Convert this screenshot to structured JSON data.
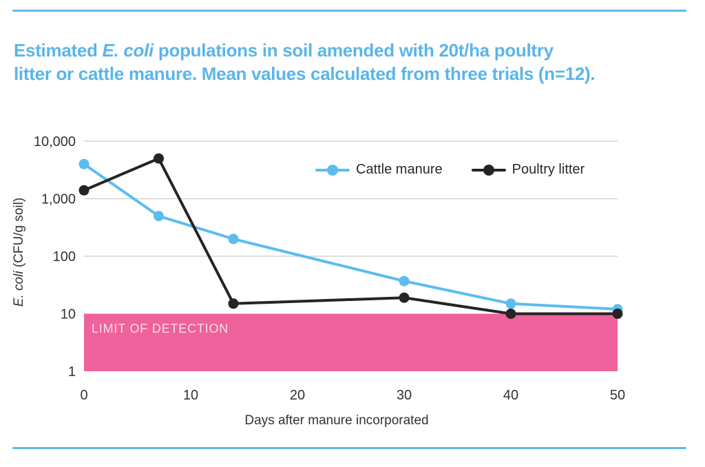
{
  "header": {
    "title_line1": {
      "prefix": "Estimated ",
      "italic": "E. coli",
      "suffix": " populations in soil amended with 20t/ha poultry"
    },
    "title_line2": "litter or cattle manure. Mean values calculated from three trials (n=12)."
  },
  "colors": {
    "accent_rule": "#5fb9e8",
    "title_text": "#5ab5e9",
    "cattle_series": "#5cbcee",
    "poultry_series": "#262324",
    "detection_band": "#ef629b",
    "band_label_text": "#f9dcea",
    "gridline": "#cbcbcb",
    "axis_text": "#363132"
  },
  "chart_data": {
    "type": "line",
    "title": "Estimated E. coli populations in soil amended with 20t/ha poultry litter or cattle manure. Mean values calculated from three trials (n=12).",
    "x_values": [
      0,
      7,
      14,
      30,
      40,
      50
    ],
    "series": [
      {
        "name": "Cattle manure",
        "color": "#5cbcee",
        "values": [
          4000,
          500,
          200,
          37,
          15,
          12
        ]
      },
      {
        "name": "Poultry litter",
        "color": "#262324",
        "values": [
          1400,
          5000,
          15,
          19,
          10,
          10
        ]
      }
    ],
    "xlabel": "Days after manure incorporated",
    "ylabel": "E. coli (CFU/g soil)",
    "ylabel_parts": {
      "italic": "E. coli",
      "rest": " (CFU/g soil)"
    },
    "yscale": "log",
    "xlim": [
      0,
      50
    ],
    "ylim": [
      1,
      10000
    ],
    "grid": "horizontal-only",
    "xticks": [
      {
        "value": 0,
        "label": "0"
      },
      {
        "value": 10,
        "label": "10"
      },
      {
        "value": 20,
        "label": "20"
      },
      {
        "value": 30,
        "label": "30"
      },
      {
        "value": 40,
        "label": "40"
      },
      {
        "value": 50,
        "label": "50"
      }
    ],
    "yticks": [
      {
        "value": 10000,
        "label": "10,000"
      },
      {
        "value": 1000,
        "label": "1,000"
      },
      {
        "value": 100,
        "label": "100"
      },
      {
        "value": 10,
        "label": "10"
      },
      {
        "value": 1,
        "label": "1"
      }
    ],
    "gridline_values": [
      10000,
      1000,
      100
    ],
    "legend": {
      "position": "top-right-inside",
      "items": [
        "Cattle manure",
        "Poultry litter"
      ]
    },
    "detection_band": {
      "label": "LIMIT OF DETECTION",
      "y_from": 1,
      "y_to": 10
    }
  }
}
